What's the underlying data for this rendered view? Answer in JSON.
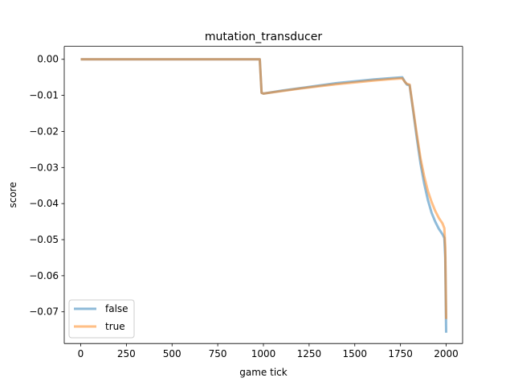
{
  "chart_data": {
    "type": "line",
    "title": "mutation_transducer",
    "xlabel": "game tick",
    "ylabel": "score",
    "xlim": [
      -90,
      2090
    ],
    "ylim": [
      -0.0788,
      0.0036
    ],
    "xticks": [
      0,
      250,
      500,
      750,
      1000,
      1250,
      1500,
      1750,
      2000
    ],
    "xtick_labels": [
      "0",
      "250",
      "500",
      "750",
      "1000",
      "1250",
      "1500",
      "1750",
      "2000"
    ],
    "yticks": [
      0.0,
      -0.01,
      -0.02,
      -0.03,
      -0.04,
      -0.05,
      -0.06,
      -0.07
    ],
    "ytick_labels": [
      "0.00",
      "−0.01",
      "−0.02",
      "−0.03",
      "−0.04",
      "−0.05",
      "−0.06",
      "−0.07"
    ],
    "grid": false,
    "legend_position": "lower-left",
    "series": [
      {
        "name": "false",
        "color": "#1f77b4",
        "points": [
          [
            0,
            0.0
          ],
          [
            980,
            0.0
          ],
          [
            990,
            -0.0093
          ],
          [
            1000,
            -0.0095
          ],
          [
            1100,
            -0.0087
          ],
          [
            1200,
            -0.008
          ],
          [
            1300,
            -0.0073
          ],
          [
            1400,
            -0.0066
          ],
          [
            1500,
            -0.0061
          ],
          [
            1600,
            -0.0056
          ],
          [
            1700,
            -0.0052
          ],
          [
            1760,
            -0.005
          ],
          [
            1775,
            -0.0063
          ],
          [
            1785,
            -0.007
          ],
          [
            1800,
            -0.0072
          ],
          [
            1820,
            -0.0145
          ],
          [
            1840,
            -0.022
          ],
          [
            1860,
            -0.029
          ],
          [
            1880,
            -0.0345
          ],
          [
            1900,
            -0.039
          ],
          [
            1920,
            -0.0425
          ],
          [
            1940,
            -0.045
          ],
          [
            1960,
            -0.047
          ],
          [
            1980,
            -0.0485
          ],
          [
            1990,
            -0.0495
          ],
          [
            1995,
            -0.055
          ],
          [
            2000,
            -0.0758
          ]
        ]
      },
      {
        "name": "true",
        "color": "#ff7f0e",
        "points": [
          [
            0,
            0.0
          ],
          [
            980,
            0.0
          ],
          [
            990,
            -0.0093
          ],
          [
            1000,
            -0.0095
          ],
          [
            1100,
            -0.0088
          ],
          [
            1200,
            -0.0081
          ],
          [
            1300,
            -0.0075
          ],
          [
            1400,
            -0.0069
          ],
          [
            1500,
            -0.0064
          ],
          [
            1600,
            -0.0059
          ],
          [
            1700,
            -0.0055
          ],
          [
            1760,
            -0.0053
          ],
          [
            1775,
            -0.0063
          ],
          [
            1785,
            -0.0068
          ],
          [
            1800,
            -0.007
          ],
          [
            1820,
            -0.014
          ],
          [
            1840,
            -0.021
          ],
          [
            1860,
            -0.0275
          ],
          [
            1880,
            -0.0325
          ],
          [
            1900,
            -0.0365
          ],
          [
            1920,
            -0.0395
          ],
          [
            1940,
            -0.042
          ],
          [
            1960,
            -0.044
          ],
          [
            1980,
            -0.0455
          ],
          [
            1990,
            -0.0468
          ],
          [
            1995,
            -0.052
          ],
          [
            2000,
            -0.072
          ]
        ]
      }
    ]
  }
}
